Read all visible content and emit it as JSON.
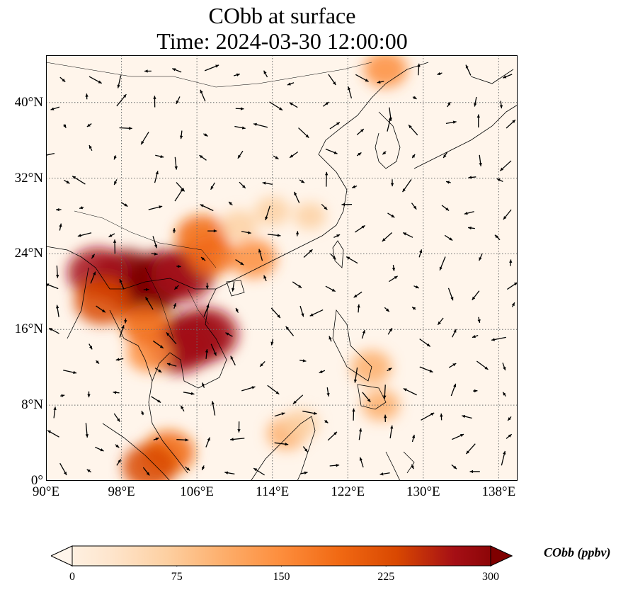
{
  "title": "CObb at surface",
  "subtitle": "Time: 2024-03-30 12:00:00",
  "map": {
    "lon_range": [
      90,
      140
    ],
    "lat_range": [
      0,
      45
    ],
    "lat_ticks": [
      {
        "value": 0,
        "label": "0°"
      },
      {
        "value": 8,
        "label": "8°N"
      },
      {
        "value": 16,
        "label": "16°N"
      },
      {
        "value": 24,
        "label": "24°N"
      },
      {
        "value": 32,
        "label": "32°N"
      },
      {
        "value": 40,
        "label": "40°N"
      }
    ],
    "lon_ticks": [
      {
        "value": 90,
        "label": "90°E"
      },
      {
        "value": 98,
        "label": "98°E"
      },
      {
        "value": 106,
        "label": "106°E"
      },
      {
        "value": 114,
        "label": "114°E"
      },
      {
        "value": 122,
        "label": "122°E"
      },
      {
        "value": 130,
        "label": "130°E"
      },
      {
        "value": 138,
        "label": "138°E"
      }
    ],
    "gridlines": "dotted",
    "hotspots": [
      {
        "lon": 98.5,
        "lat": 21.5,
        "value": 300
      },
      {
        "lon": 100.5,
        "lat": 20.0,
        "value": 300
      },
      {
        "lon": 102.5,
        "lat": 21.5,
        "value": 290
      },
      {
        "lon": 104.5,
        "lat": 21.8,
        "value": 280
      },
      {
        "lon": 95.5,
        "lat": 22.0,
        "value": 260
      },
      {
        "lon": 96.0,
        "lat": 19.0,
        "value": 230
      },
      {
        "lon": 105.5,
        "lat": 15.0,
        "value": 300
      },
      {
        "lon": 107.0,
        "lat": 15.5,
        "value": 280
      },
      {
        "lon": 104.0,
        "lat": 14.0,
        "value": 260
      },
      {
        "lon": 106.5,
        "lat": 25.8,
        "value": 200
      },
      {
        "lon": 107.5,
        "lat": 23.8,
        "value": 170
      },
      {
        "lon": 110.5,
        "lat": 27.0,
        "value": 90
      },
      {
        "lon": 114.0,
        "lat": 28.5,
        "value": 80
      },
      {
        "lon": 118.0,
        "lat": 28.0,
        "value": 60
      },
      {
        "lon": 101.0,
        "lat": 13.5,
        "value": 150
      },
      {
        "lon": 100.5,
        "lat": 16.5,
        "value": 170
      },
      {
        "lon": 103.0,
        "lat": 3.0,
        "value": 200
      },
      {
        "lon": 101.0,
        "lat": 1.5,
        "value": 220
      },
      {
        "lon": 124.5,
        "lat": 12.0,
        "value": 120
      },
      {
        "lon": 125.5,
        "lat": 8.0,
        "value": 100
      },
      {
        "lon": 115.5,
        "lat": 5.0,
        "value": 110
      },
      {
        "lon": 117.0,
        "lat": 6.0,
        "value": 90
      },
      {
        "lon": 126.0,
        "lat": 43.5,
        "value": 140
      },
      {
        "lon": 112.0,
        "lat": 23.5,
        "value": 160
      }
    ]
  },
  "colorbar": {
    "label": "CObb (ppbv)",
    "min": 0,
    "max": 300,
    "ticks": [
      0,
      75,
      150,
      225,
      300
    ],
    "colors": [
      "#fff5eb",
      "#fee6ce",
      "#fdd0a2",
      "#fdae6b",
      "#fd8d3c",
      "#f16913",
      "#d94801",
      "#a50f15",
      "#7f0000"
    ],
    "extend": "both"
  }
}
